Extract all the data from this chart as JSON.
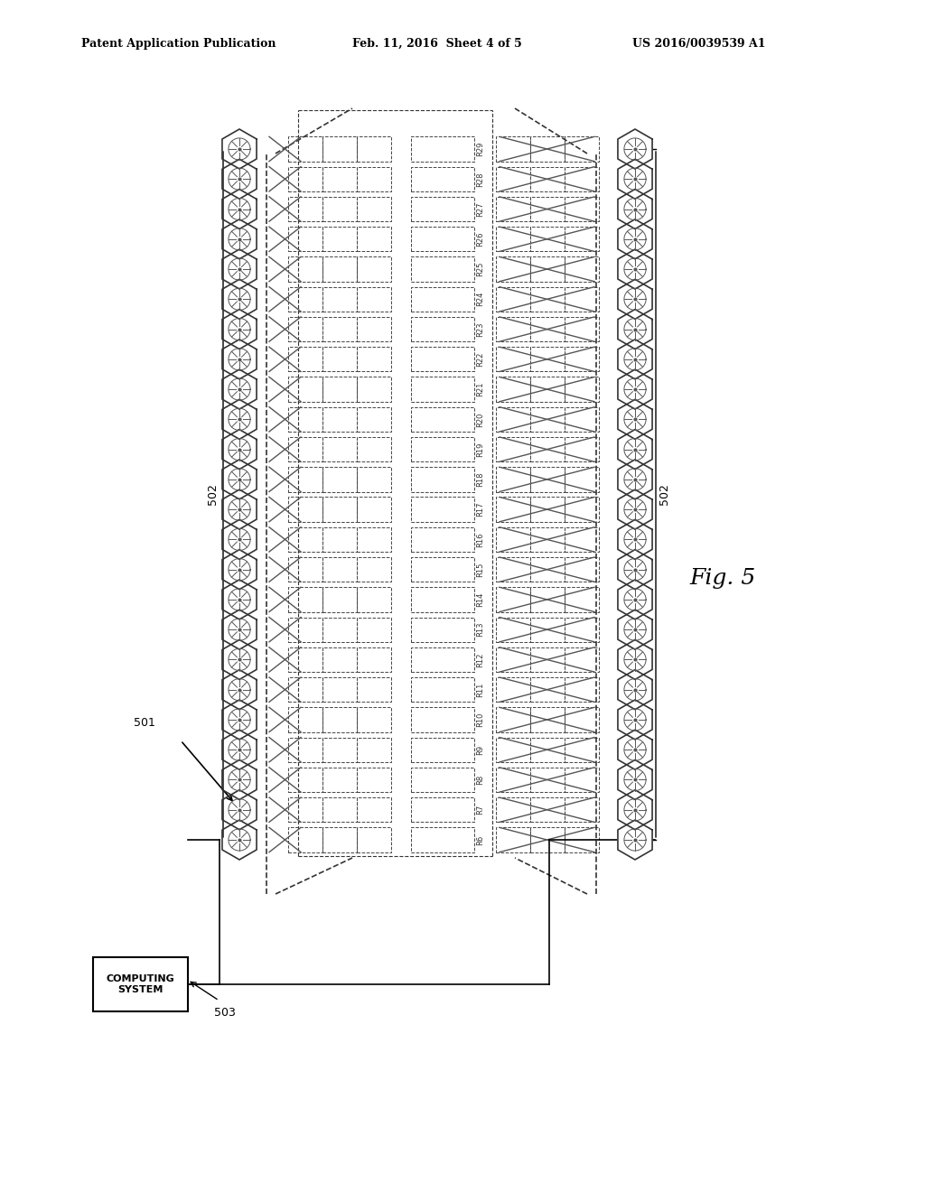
{
  "title_left": "Patent Application Publication",
  "title_mid": "Feb. 11, 2016  Sheet 4 of 5",
  "title_right": "US 2016/0039539 A1",
  "fig_label": "Fig. 5",
  "label_501": "501",
  "label_502": "502",
  "label_503": "503",
  "computing_system_text": "COMPUTING\nSYSTEM",
  "num_rows": 24,
  "row_labels": [
    "R29",
    "R28",
    "R27",
    "R26",
    "R25",
    "R24",
    "R23",
    "R22",
    "R21",
    "R20",
    "R19",
    "R18",
    "R17",
    "R16",
    "R15",
    "R14",
    "R13",
    "R12",
    "R11",
    "R10",
    "R9",
    "R8",
    "R7",
    "R6"
  ],
  "bg_color": "#ffffff",
  "line_color": "#000000",
  "dashed_color": "#555555"
}
